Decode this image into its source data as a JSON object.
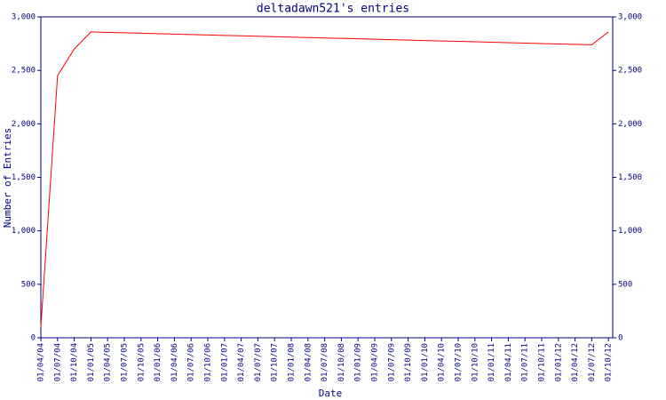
{
  "chart_data": {
    "type": "line",
    "title": "deltadawn521's entries",
    "x_label": "Date",
    "y_label": "Number of Entries",
    "categories": [
      "01/04/04",
      "01/07/04",
      "01/10/04",
      "01/01/05",
      "01/04/05",
      "01/07/05",
      "01/10/05",
      "01/01/06",
      "01/04/06",
      "01/07/06",
      "01/10/06",
      "01/01/07",
      "01/04/07",
      "01/07/07",
      "01/10/07",
      "01/01/08",
      "01/04/08",
      "01/07/08",
      "01/10/08",
      "01/01/09",
      "01/04/09",
      "01/07/09",
      "01/10/09",
      "01/01/10",
      "01/04/10",
      "01/07/10",
      "01/10/10",
      "01/01/11",
      "01/04/11",
      "01/07/11",
      "01/10/11",
      "01/01/12",
      "01/04/12",
      "01/07/12",
      "01/10/12"
    ],
    "series": [
      {
        "color": "#ff0000",
        "values": [
          100,
          2450,
          2700,
          2860,
          2855,
          2851,
          2847,
          2843,
          2839,
          2835,
          2831,
          2827,
          2823,
          2819,
          2815,
          2811,
          2807,
          2803,
          2799,
          2795,
          2791,
          2787,
          2783,
          2779,
          2775,
          2771,
          2767,
          2763,
          2759,
          2755,
          2751,
          2747,
          2743,
          2739,
          2860
        ]
      }
    ],
    "ylim": [
      0,
      3000
    ],
    "yticks": [
      0,
      500,
      {
        "value": 1000,
        "label": "1,000"
      },
      {
        "value": 1500,
        "label": "1,500"
      },
      {
        "value": 2000,
        "label": "2,000"
      },
      {
        "value": 2500,
        "label": "2,500"
      },
      {
        "value": 3000,
        "label": "3,000"
      }
    ],
    "y2lim": [
      0,
      3000
    ],
    "y2ticks": [
      0,
      500,
      {
        "value": 1000,
        "label": "1,000"
      },
      {
        "value": 1500,
        "label": "1,500"
      },
      {
        "value": 2000,
        "label": "2,000"
      },
      {
        "value": 2500,
        "label": "2,500"
      },
      {
        "value": 3000,
        "label": "3,000"
      }
    ],
    "axis_color": "#000080"
  }
}
